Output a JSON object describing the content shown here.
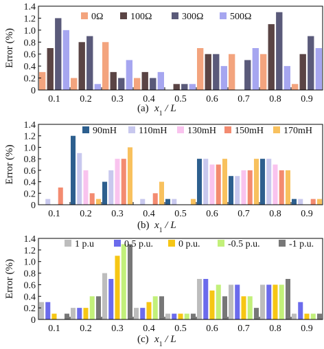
{
  "chart_data": [
    {
      "type": "bar",
      "panel_label": "(a)",
      "xlabel": "x1 / L",
      "ylabel": "Error (%)",
      "ylim": [
        0,
        1.4
      ],
      "yticks": [
        "0",
        "0.2",
        "0.4",
        "0.6",
        "0.8",
        "1.0",
        "1.2",
        "1.4"
      ],
      "categories": [
        "0.1",
        "0.2",
        "0.3",
        "0.4",
        "0.5",
        "0.6",
        "0.7",
        "0.8",
        "0.9"
      ],
      "legend_position": "top",
      "series": [
        {
          "name": "0Ω",
          "color": "#f3a47e",
          "values": [
            0.3,
            0.2,
            0.8,
            0.2,
            0,
            0.7,
            0.6,
            0.6,
            0.1
          ]
        },
        {
          "name": "100Ω",
          "color": "#5a4444",
          "values": [
            0.7,
            0.8,
            0.3,
            0.3,
            0.1,
            0.6,
            0,
            1.1,
            0.6
          ]
        },
        {
          "name": "300Ω",
          "color": "#5a5a7a",
          "values": [
            1.2,
            0.9,
            0.2,
            0.2,
            0.1,
            0.6,
            0.5,
            1.3,
            0.9
          ]
        },
        {
          "name": "500Ω",
          "color": "#a6a6f0",
          "values": [
            1.0,
            0.1,
            0.5,
            0.3,
            0.1,
            0.4,
            0.7,
            0.4,
            0.7
          ]
        }
      ]
    },
    {
      "type": "bar",
      "panel_label": "(b)",
      "xlabel": "x1 / L",
      "ylabel": "Error (%)",
      "ylim": [
        0,
        1.4
      ],
      "yticks": [
        "0",
        "0.2",
        "0.4",
        "0.6",
        "0.8",
        "1.0",
        "1.2",
        "1.4"
      ],
      "categories": [
        "0.1",
        "0.2",
        "0.3",
        "0.4",
        "0.5",
        "0.6",
        "0.7",
        "0.8",
        "0.9"
      ],
      "legend_position": "top-right",
      "series": [
        {
          "name": "90mH",
          "color": "#2d5f8e",
          "values": [
            0,
            1.2,
            0.4,
            0,
            0.1,
            0.8,
            0.5,
            0.8,
            0.1
          ]
        },
        {
          "name": "110mH",
          "color": "#c8c8ee",
          "values": [
            0.1,
            0.9,
            0.6,
            0.1,
            0.1,
            0.8,
            0.5,
            0.8,
            0.1
          ]
        },
        {
          "name": "130mH",
          "color": "#f9c3ee",
          "values": [
            0,
            0.6,
            0.8,
            0,
            0,
            0.7,
            0.6,
            0.7,
            0
          ]
        },
        {
          "name": "150mH",
          "color": "#f38b70",
          "values": [
            0.3,
            0.2,
            0.8,
            0.2,
            0,
            0.7,
            0.6,
            0.6,
            0.1
          ]
        },
        {
          "name": "170mH",
          "color": "#f8c15e",
          "values": [
            0,
            0.1,
            1.0,
            0.4,
            0.1,
            0.8,
            0.8,
            0.6,
            0.1
          ]
        }
      ]
    },
    {
      "type": "bar",
      "panel_label": "(c)",
      "xlabel": "x1 / L",
      "ylabel": "Error (%)",
      "ylim": [
        0,
        1.4
      ],
      "yticks": [
        "0",
        "0.2",
        "0.4",
        "0.6",
        "0.8",
        "1.0",
        "1.2",
        "1.4"
      ],
      "categories": [
        "0.1",
        "0.2",
        "0.3",
        "0.4",
        "0.5",
        "0.6",
        "0.7",
        "0.8",
        "0.9"
      ],
      "legend_position": "top",
      "series": [
        {
          "name": "1 p.u",
          "color": "#bdbdbd",
          "values": [
            0.3,
            0.2,
            0.8,
            0.2,
            0.1,
            0.7,
            0.6,
            0.6,
            0.1
          ]
        },
        {
          "name": "0.5 p.u.",
          "color": "#6b6bec",
          "values": [
            0.3,
            0.2,
            0.7,
            0.2,
            0.1,
            0.7,
            0.6,
            0.6,
            0.3
          ]
        },
        {
          "name": "0 p.u.",
          "color": "#f6c614",
          "values": [
            0.1,
            0.2,
            1.1,
            0.3,
            0.1,
            0.5,
            0.4,
            0.6,
            0.1
          ]
        },
        {
          "name": "-0.5 p.u.",
          "color": "#c2f07a",
          "values": [
            0,
            0.4,
            1.3,
            0.4,
            0.1,
            0.6,
            0.4,
            0.6,
            0.1
          ]
        },
        {
          "name": "-1 p.u.",
          "color": "#777777",
          "values": [
            0.1,
            0.4,
            1.3,
            0.4,
            0.1,
            0.4,
            0.2,
            0.7,
            0.1
          ]
        }
      ]
    }
  ]
}
